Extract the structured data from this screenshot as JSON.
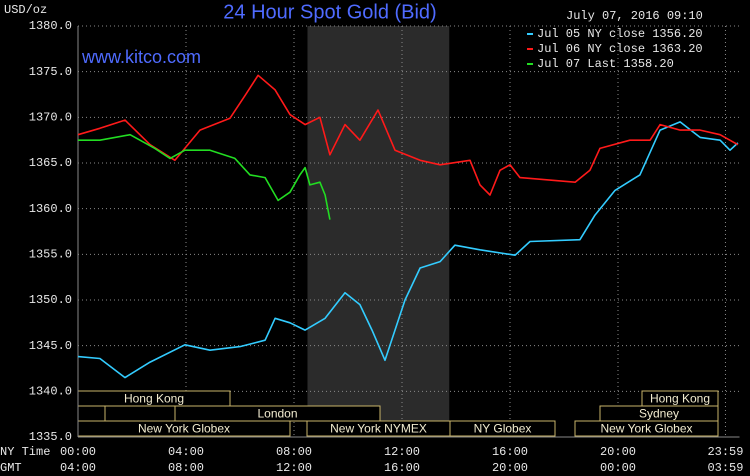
{
  "chart_data": {
    "type": "line",
    "title": "24 Hour Spot Gold (Bid)",
    "y_unit": "USD/oz",
    "timestamp": "July 07, 2016 09:10",
    "site": "www.kitco.com",
    "x_label_1": "NY Time",
    "x_label_2": "GMT",
    "xlim": [
      0,
      24.5
    ],
    "ylim": [
      1335,
      1380
    ],
    "xticks": [
      {
        "value": 0,
        "label": "00:00"
      },
      {
        "value": 4,
        "label": "04:00"
      },
      {
        "value": 8,
        "label": "08:00"
      },
      {
        "value": 12,
        "label": "12:00"
      },
      {
        "value": 16,
        "label": "16:00"
      },
      {
        "value": 20,
        "label": "20:00"
      },
      {
        "value": 23.98,
        "label": "23:59"
      }
    ],
    "gmt_labels": [
      "04:00",
      "08:00",
      "12:00",
      "16:00",
      "20:00",
      "00:00",
      "03:59"
    ],
    "yticks": [
      {
        "value": 1335,
        "label": "1335.0"
      },
      {
        "value": 1340,
        "label": "1340.0"
      },
      {
        "value": 1345,
        "label": "1345.0"
      },
      {
        "value": 1350,
        "label": "1350.0"
      },
      {
        "value": 1355,
        "label": "1355.0"
      },
      {
        "value": 1360,
        "label": "1360.0"
      },
      {
        "value": 1365,
        "label": "1365.0"
      },
      {
        "value": 1370,
        "label": "1370.0"
      },
      {
        "value": 1375,
        "label": "1375.0"
      },
      {
        "value": 1380,
        "label": "1380.0"
      }
    ],
    "grid": true,
    "shade": [
      8.5,
      13.75
    ],
    "sessions": [
      "Hong Kong",
      "Hong Kong",
      "London",
      "Sydney",
      "New York Globex",
      "New York NYMEX",
      "NY Globex",
      "New York Globex"
    ],
    "series": [
      {
        "name": "Jul 05 NY close 1356.20",
        "color": "#33ccff",
        "x": [
          0,
          0.81,
          1.74,
          2.67,
          3.96,
          4.89,
          6,
          6.93,
          7.3,
          7.85,
          8.41,
          9.15,
          9.89,
          10.44,
          10.89,
          11.37,
          11.74,
          12.11,
          12.67,
          13.41,
          13.96,
          14.89,
          16.19,
          16.74,
          18.59,
          19.15,
          19.89,
          20.81,
          21.56,
          22.3,
          23.04,
          23.78,
          24.15,
          24.44
        ],
        "values": [
          1343.8,
          1343.6,
          1341.5,
          1343.2,
          1345.1,
          1344.5,
          1344.9,
          1345.6,
          1348.0,
          1347.5,
          1346.7,
          1348.0,
          1350.8,
          1349.5,
          1346.7,
          1343.4,
          1346.7,
          1350.0,
          1353.5,
          1354.2,
          1356.0,
          1355.5,
          1354.9,
          1356.4,
          1356.6,
          1359.3,
          1362.0,
          1363.7,
          1368.6,
          1369.5,
          1367.8,
          1367.5,
          1366.4,
          1367.2
        ]
      },
      {
        "name": "Jul 06 NY close 1363.20",
        "color": "#ff1a1a",
        "x": [
          0,
          0.81,
          1.74,
          2.67,
          3.59,
          4.52,
          5.63,
          6.19,
          6.67,
          7.3,
          7.85,
          8.41,
          8.96,
          9.33,
          9.89,
          10.44,
          11.11,
          11.74,
          12.67,
          13.41,
          14.52,
          14.89,
          15.26,
          15.63,
          16,
          16.37,
          18.41,
          18.96,
          19.33,
          20.44,
          21.19,
          21.56,
          22.3,
          23.04,
          23.78,
          24.44
        ],
        "values": [
          1368.1,
          1368.8,
          1369.7,
          1367.0,
          1365.3,
          1368.6,
          1369.9,
          1372.4,
          1374.6,
          1373.0,
          1370.3,
          1369.2,
          1370.0,
          1365.9,
          1369.2,
          1367.5,
          1370.8,
          1366.4,
          1365.3,
          1364.8,
          1365.3,
          1362.6,
          1361.5,
          1364.2,
          1364.8,
          1363.4,
          1362.9,
          1364.2,
          1366.6,
          1367.5,
          1367.5,
          1369.2,
          1368.6,
          1368.6,
          1368.1,
          1367.0
        ]
      },
      {
        "name": "Jul 07 Last 1358.20",
        "color": "#22dd22",
        "x": [
          0,
          0.81,
          1.93,
          2.85,
          3.41,
          3.96,
          4.89,
          5.81,
          6.37,
          6.93,
          7.41,
          7.85,
          8.22,
          8.41,
          8.59,
          8.96,
          9.15,
          9.33
        ],
        "values": [
          1367.5,
          1367.5,
          1368.1,
          1366.6,
          1365.5,
          1366.4,
          1366.4,
          1365.5,
          1363.7,
          1363.4,
          1360.9,
          1361.8,
          1363.7,
          1364.5,
          1362.6,
          1362.9,
          1361.5,
          1358.8
        ]
      }
    ]
  }
}
